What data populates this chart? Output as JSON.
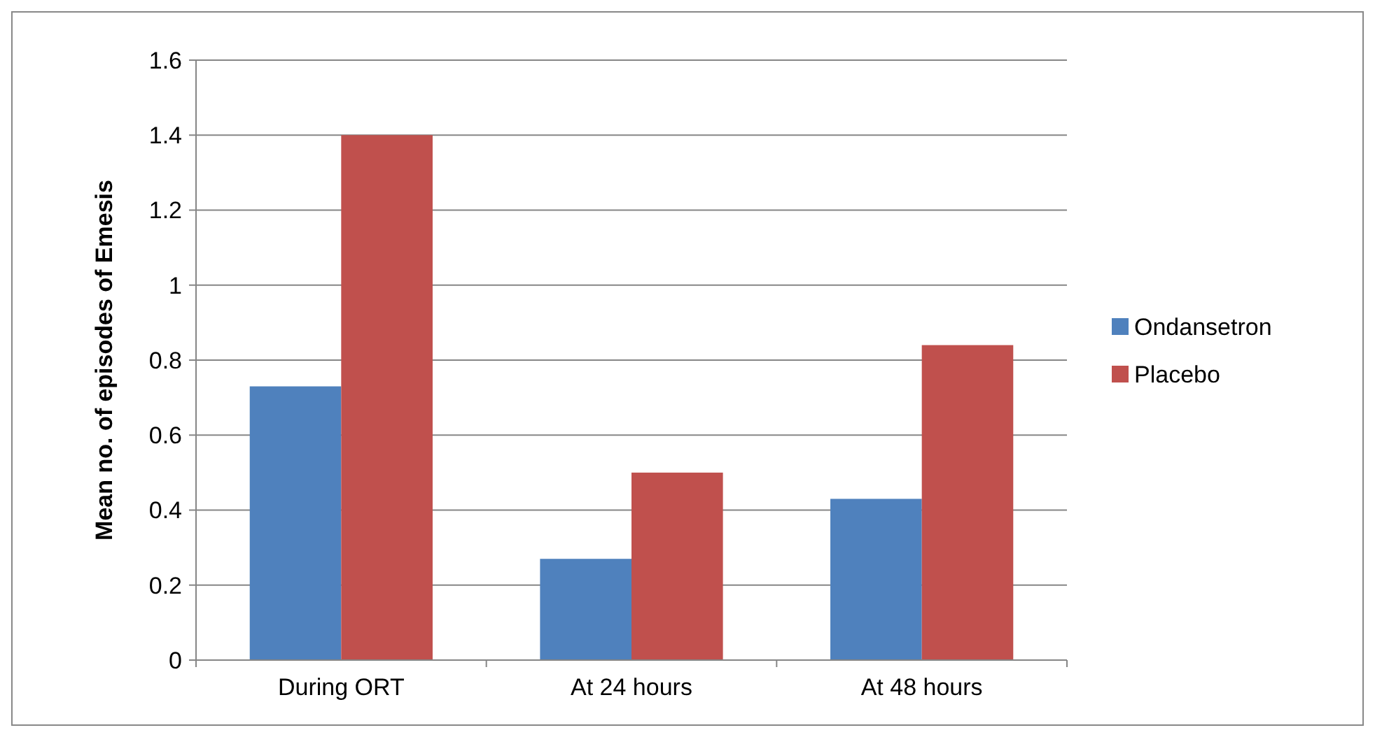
{
  "chart_data": {
    "type": "bar",
    "ylabel": "Mean no. of episodes of Emesis",
    "categories": [
      "During ORT",
      "At 24 hours",
      "At 48 hours"
    ],
    "series": [
      {
        "name": "Ondansetron",
        "color": "#4f81bd",
        "values": [
          0.73,
          0.27,
          0.43
        ]
      },
      {
        "name": "Placebo",
        "color": "#c0504d",
        "values": [
          1.4,
          0.5,
          0.84
        ]
      }
    ],
    "ylim": [
      0,
      1.6
    ],
    "yticks": [
      0,
      0.2,
      0.4,
      0.6,
      0.8,
      1,
      1.2,
      1.4,
      1.6
    ],
    "grid": "y",
    "legend": "right"
  }
}
